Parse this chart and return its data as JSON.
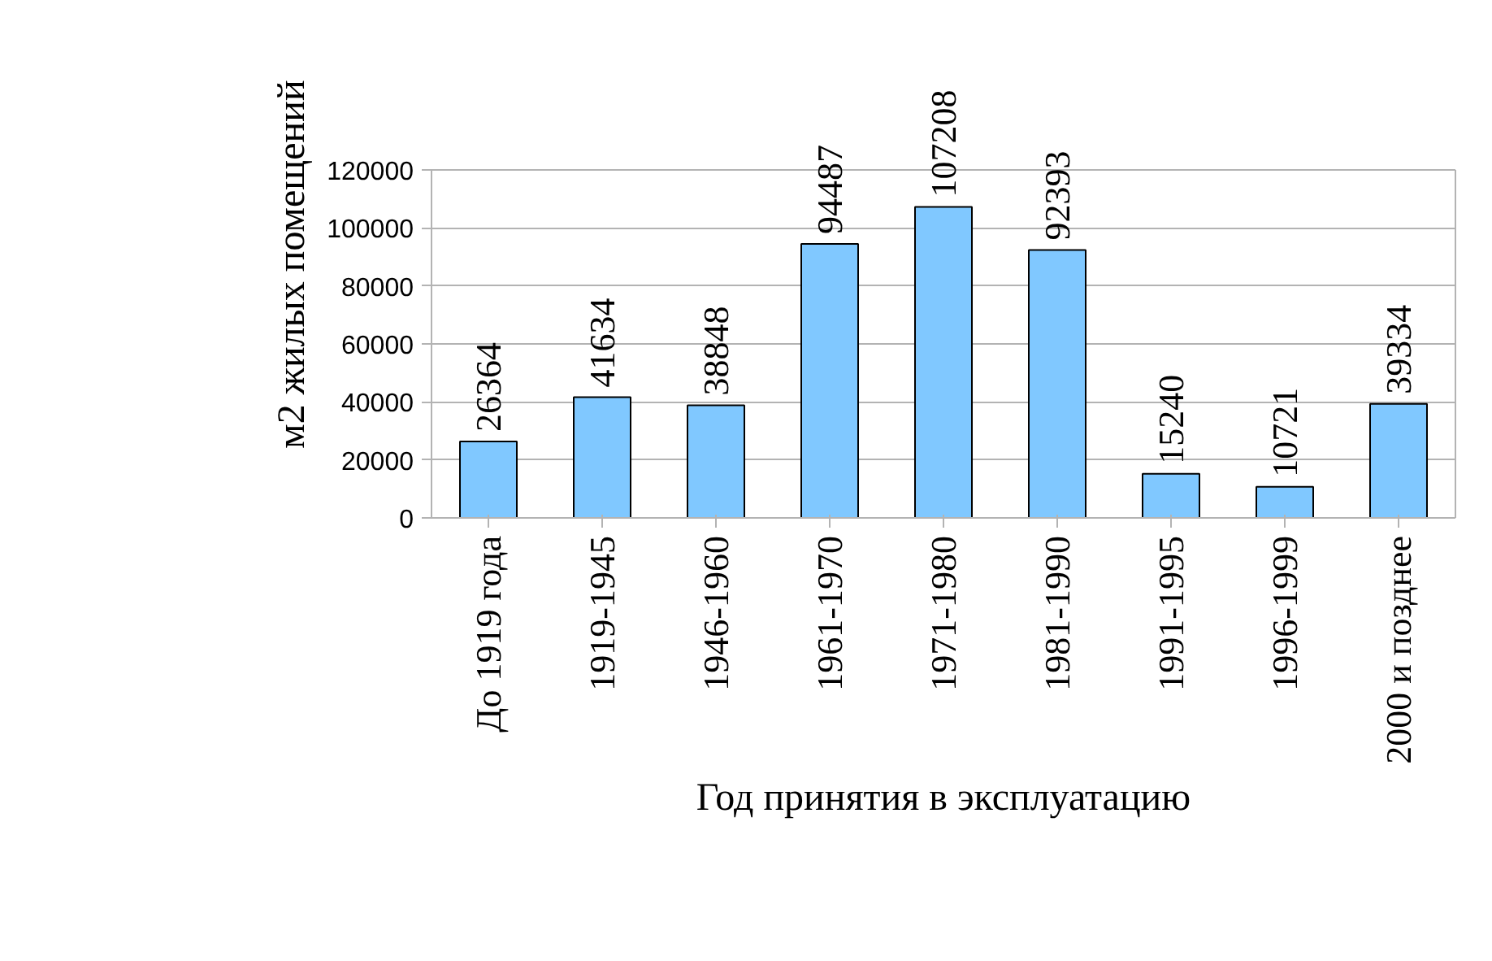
{
  "chart_data": {
    "type": "bar",
    "xlabel": "Год принятия в эксплуатацию",
    "ylabel": "м2 жилых помещений",
    "categories": [
      "До 1919 года",
      "1919-1945",
      "1946-1960",
      "1961-1970",
      "1971-1980",
      "1981-1990",
      "1991-1995",
      "1996-1999",
      "2000 и позднее"
    ],
    "values": [
      26364,
      41634,
      38848,
      94487,
      107208,
      92393,
      15240,
      10721,
      39334
    ],
    "color": "#80c8ff",
    "ylim": [
      0,
      120000
    ],
    "yticks": [
      0,
      20000,
      40000,
      60000,
      80000,
      100000,
      120000
    ],
    "grid": "y",
    "data_labels": true
  }
}
